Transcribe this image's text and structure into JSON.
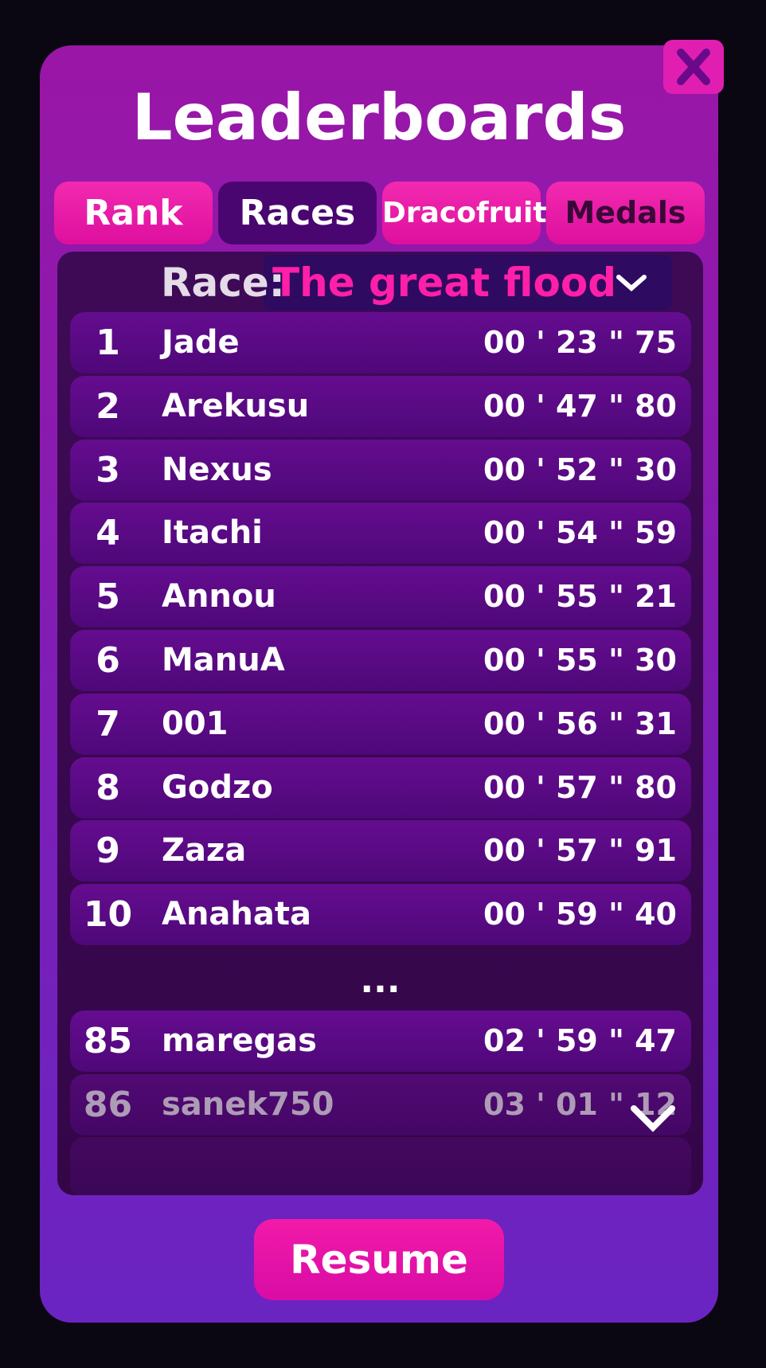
{
  "title": "Leaderboards",
  "tabs": [
    "Rank",
    "Races",
    "Dracofruit",
    "Medals"
  ],
  "race_label": "Race:",
  "race_name": "The great flood",
  "rows": [
    {
      "rank": "1",
      "name": "Jade",
      "time": "00 ' 23 \" 75"
    },
    {
      "rank": "2",
      "name": "Arekusu",
      "time": "00 ' 47 \" 80"
    },
    {
      "rank": "3",
      "name": "Nexus",
      "time": "00 ' 52 \" 30"
    },
    {
      "rank": "4",
      "name": "Itachi",
      "time": "00 ' 54 \" 59"
    },
    {
      "rank": "5",
      "name": "Annou",
      "time": "00 ' 55 \" 21"
    },
    {
      "rank": "6",
      "name": "ManuA",
      "time": "00 ' 55 \" 30"
    },
    {
      "rank": "7",
      "name": "001",
      "time": "00 ' 56 \" 31"
    },
    {
      "rank": "8",
      "name": "Godzo",
      "time": "00 ' 57 \" 80"
    },
    {
      "rank": "9",
      "name": "Zaza",
      "time": "00 ' 57 \" 91"
    },
    {
      "rank": "10",
      "name": "Anahata",
      "time": "00 ' 59 \" 40"
    }
  ],
  "ellipsis": "...",
  "own_rows": [
    {
      "rank": "85",
      "name": "maregas",
      "time": "02 ' 59 \" 47"
    },
    {
      "rank": "86",
      "name": "sanek750",
      "time": "03 ' 01 \" 12"
    }
  ],
  "resume": "Resume"
}
